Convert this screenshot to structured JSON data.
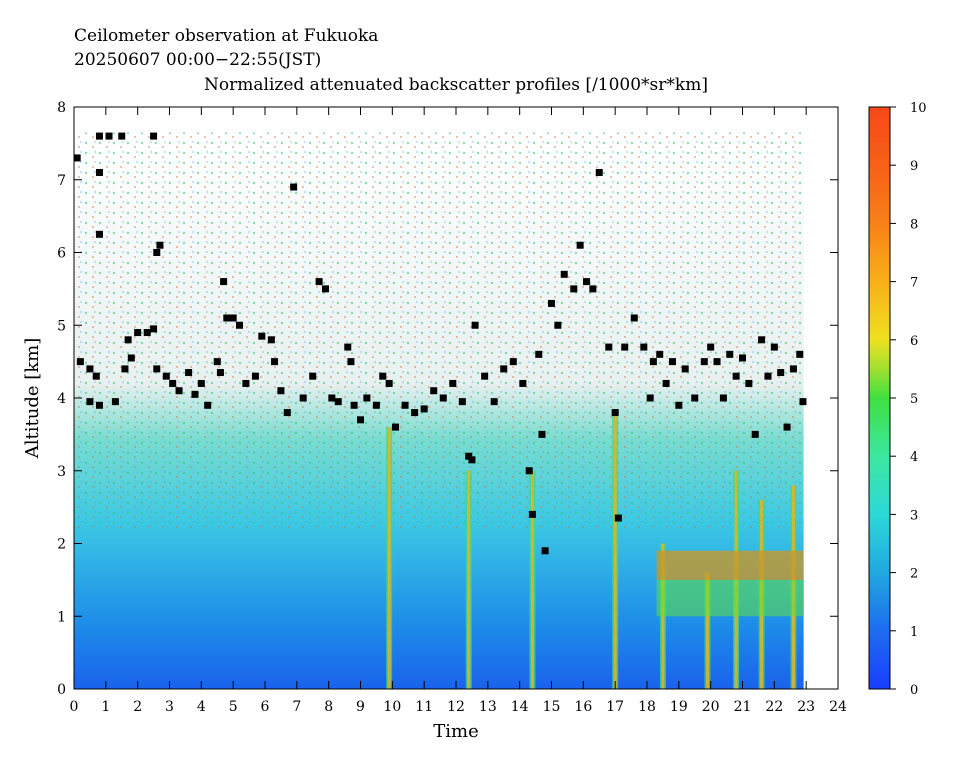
{
  "chart_data": {
    "type": "heatmap",
    "title_line1": "Ceilometer observation at Fukuoka",
    "title_line2": "20250607  00:00−22:55(JST)",
    "title_line3": "Normalized attenuated backscatter profiles [/1000*sr*km]",
    "xlabel": "Time",
    "ylabel": "Altitude [km]",
    "xlim": [
      0,
      24
    ],
    "ylim": [
      0,
      8
    ],
    "x_ticks": [
      0,
      1,
      2,
      3,
      4,
      5,
      6,
      7,
      8,
      9,
      10,
      11,
      12,
      13,
      14,
      15,
      16,
      17,
      18,
      19,
      20,
      21,
      22,
      23,
      24
    ],
    "y_ticks": [
      0,
      1,
      2,
      3,
      4,
      5,
      6,
      7,
      8
    ],
    "colorbar": {
      "range": [
        0,
        10
      ],
      "ticks": [
        0,
        1,
        2,
        3,
        4,
        5,
        6,
        7,
        8,
        9,
        10
      ],
      "colors": [
        "#1a3dff",
        "#1e6cf0",
        "#20a8e0",
        "#2cd8d8",
        "#3ce8a0",
        "#40e040",
        "#a0e030",
        "#f0e020",
        "#f8b018",
        "#f88018",
        "#f84818"
      ]
    },
    "data_end_time": 22.92,
    "cloud_base_color": "#000000"
  }
}
